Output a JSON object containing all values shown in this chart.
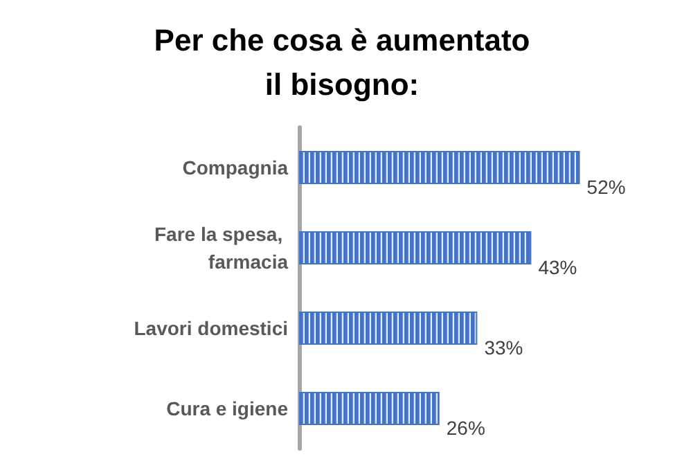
{
  "chart_data": {
    "type": "bar",
    "orientation": "horizontal",
    "title": "Per che cosa è aumentato\nil bisogno:",
    "categories": [
      "Compagnia",
      "Fare la spesa, farmacia",
      "Lavori domestici",
      "Cura e igiene"
    ],
    "values": [
      52,
      43,
      33,
      26
    ],
    "value_labels": [
      "52%",
      "43%",
      "33%",
      "26%"
    ],
    "color": "#4472c4"
  }
}
